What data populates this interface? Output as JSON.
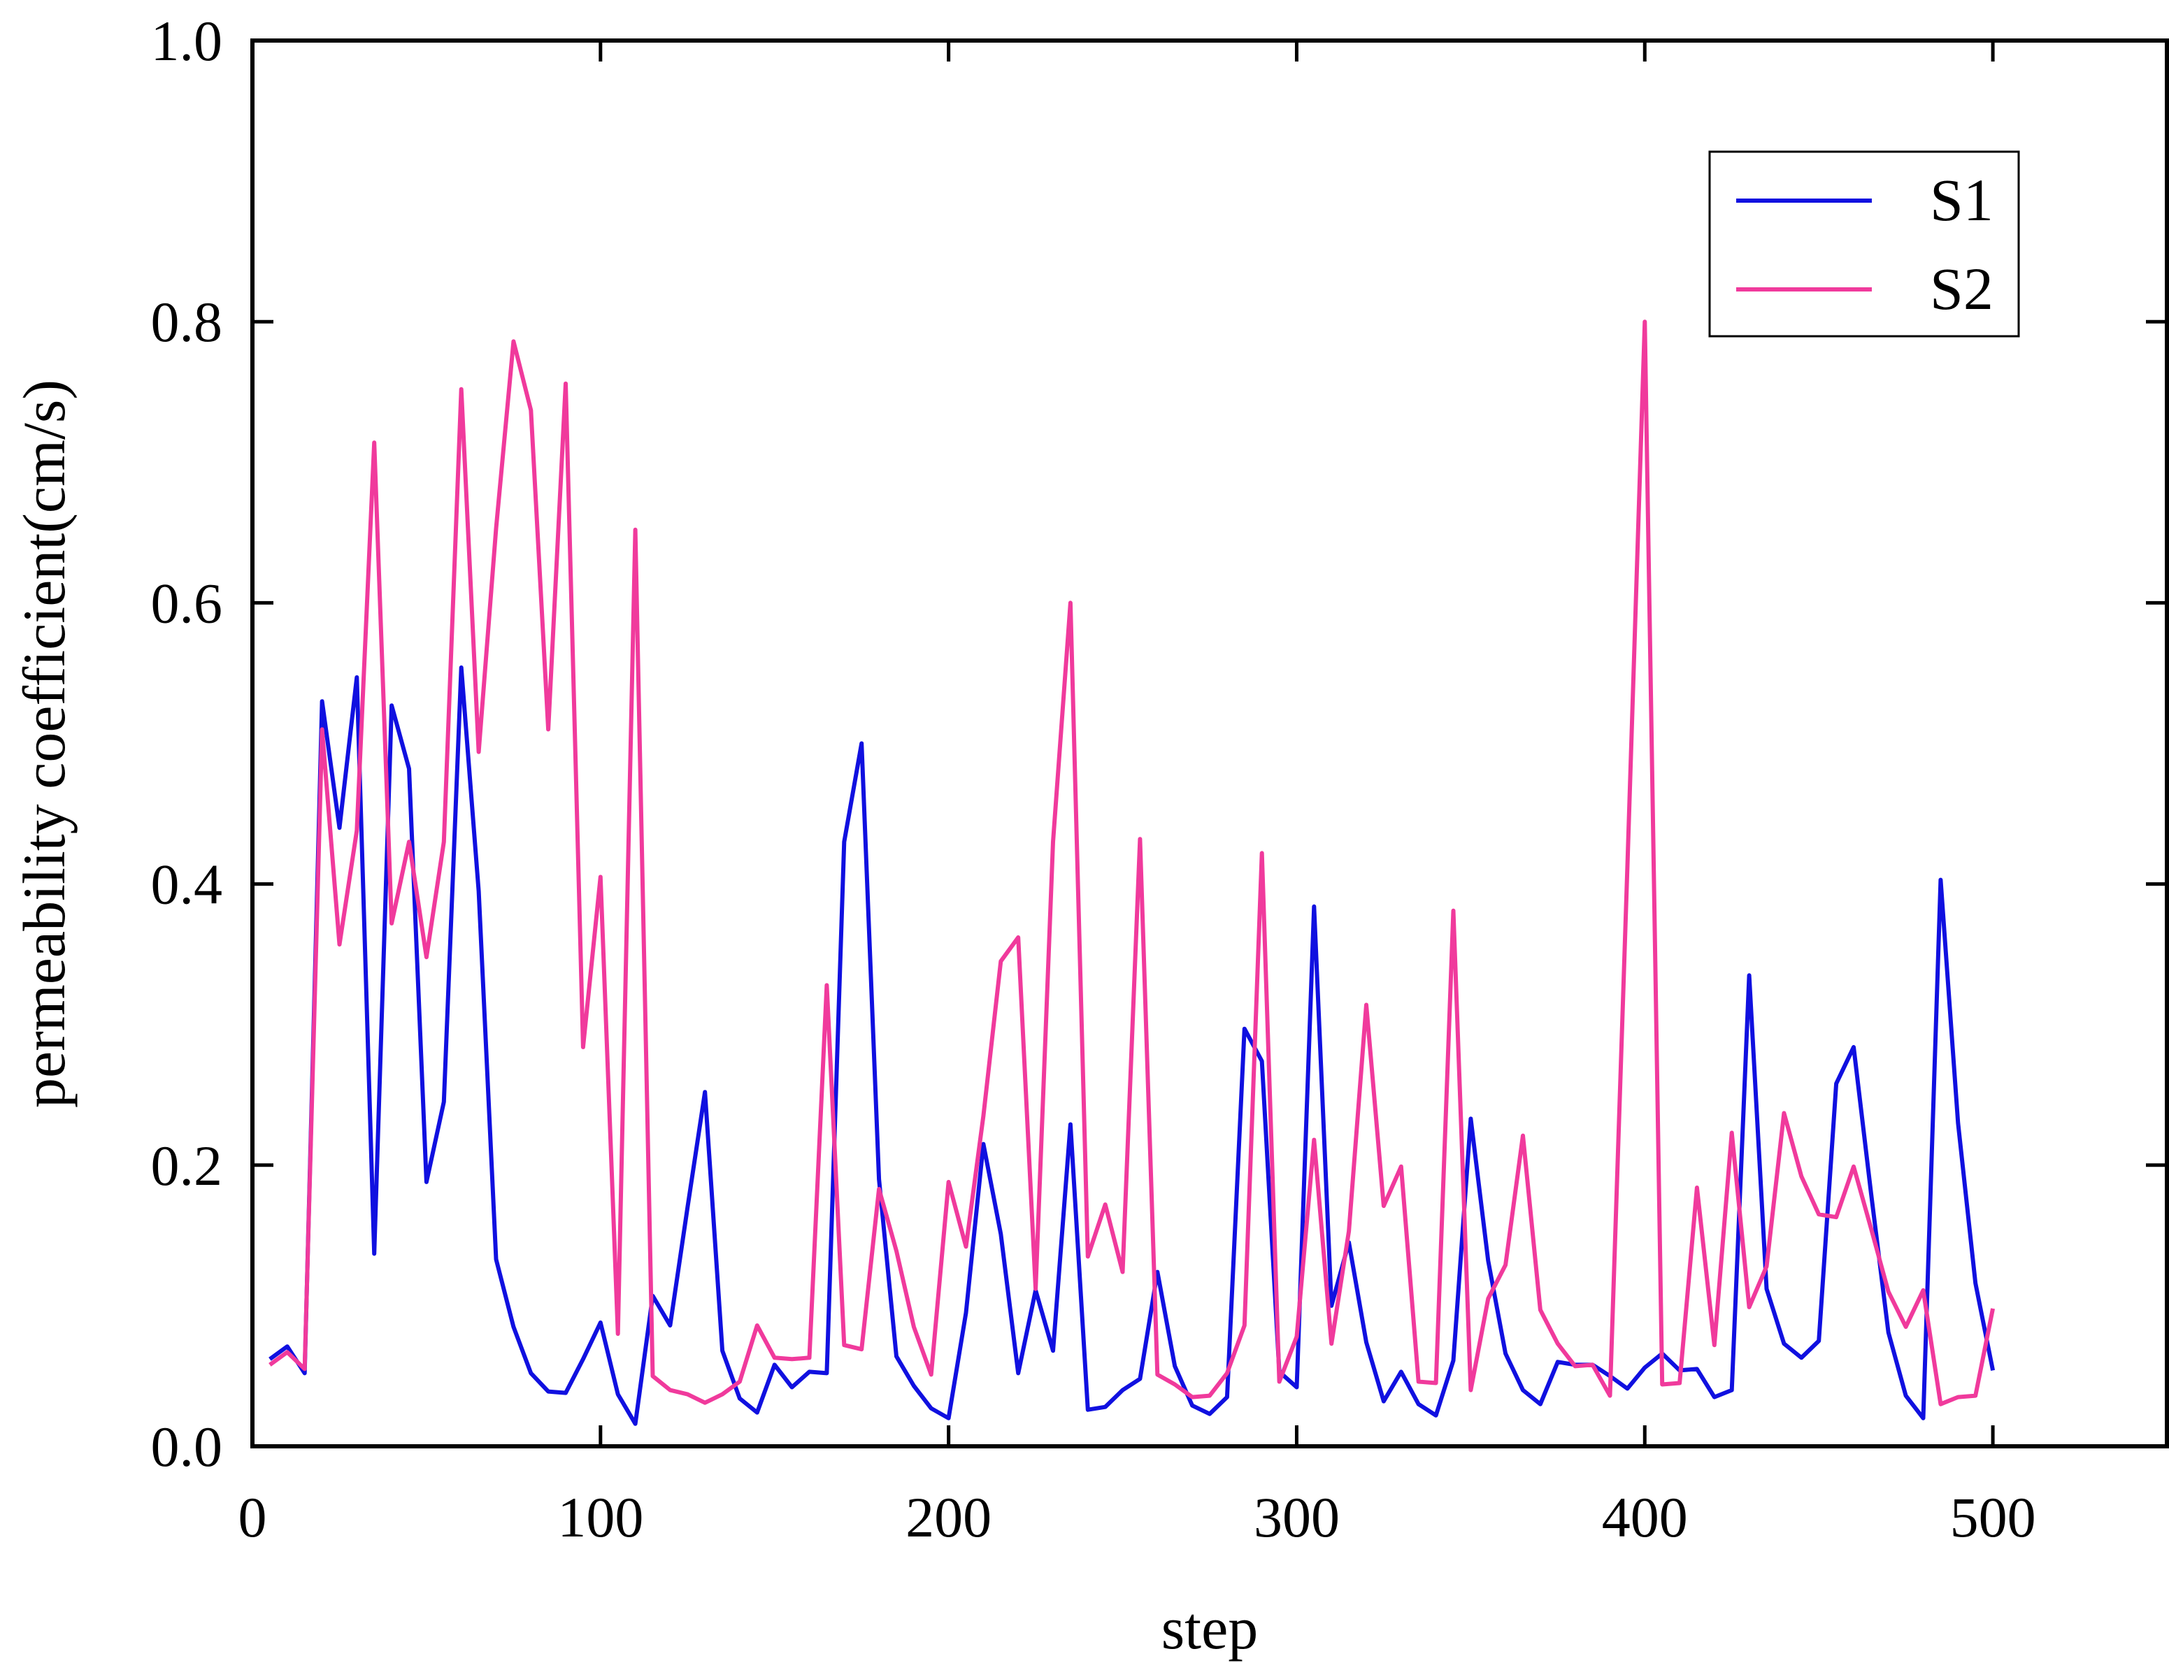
{
  "chart_data": {
    "type": "line",
    "title": "",
    "xlabel": "step",
    "ylabel": "permeability coefficient(cm/s)",
    "xlim": [
      0,
      550
    ],
    "ylim": [
      0.0,
      1.0
    ],
    "x_ticks": [
      0,
      100,
      200,
      300,
      400,
      500
    ],
    "x_tick_labels": [
      "0",
      "100",
      "200",
      "300",
      "400",
      "500"
    ],
    "y_ticks": [
      0.0,
      0.2,
      0.4,
      0.6,
      0.8,
      1.0
    ],
    "y_tick_labels": [
      "0.0",
      "0.2",
      "0.4",
      "0.6",
      "0.8",
      "1.0"
    ],
    "grid": false,
    "legend_position": "top-right",
    "series": [
      {
        "name": "S1",
        "color": "#1010e0",
        "x": [
          5,
          10,
          15,
          20,
          25,
          30,
          35,
          40,
          45,
          50,
          55,
          60,
          65,
          70,
          75,
          80,
          85,
          90,
          95,
          100,
          105,
          110,
          115,
          120,
          125,
          130,
          135,
          140,
          145,
          150,
          155,
          160,
          165,
          170,
          175,
          180,
          185,
          190,
          195,
          200,
          205,
          210,
          215,
          220,
          225,
          230,
          235,
          240,
          245,
          250,
          255,
          260,
          265,
          270,
          275,
          280,
          285,
          290,
          295,
          300,
          305,
          310,
          315,
          320,
          325,
          330,
          335,
          340,
          345,
          350,
          355,
          360,
          365,
          370,
          375,
          380,
          385,
          390,
          395,
          400,
          405,
          410,
          415,
          420,
          425,
          430,
          435,
          440,
          445,
          450,
          455,
          460,
          465,
          470,
          475,
          480,
          485,
          490,
          495,
          500
        ],
        "values": [
          0.062,
          0.071,
          0.052,
          0.53,
          0.44,
          0.547,
          0.137,
          0.527,
          0.482,
          0.188,
          0.245,
          0.554,
          0.395,
          0.133,
          0.085,
          0.052,
          0.039,
          0.038,
          0.062,
          0.088,
          0.037,
          0.016,
          0.107,
          0.086,
          0.17,
          0.252,
          0.068,
          0.034,
          0.024,
          0.058,
          0.042,
          0.053,
          0.052,
          0.43,
          0.5,
          0.19,
          0.064,
          0.043,
          0.027,
          0.02,
          0.095,
          0.215,
          0.151,
          0.052,
          0.111,
          0.068,
          0.229,
          0.026,
          0.028,
          0.04,
          0.048,
          0.124,
          0.057,
          0.029,
          0.023,
          0.035,
          0.297,
          0.274,
          0.053,
          0.042,
          0.384,
          0.1,
          0.145,
          0.074,
          0.032,
          0.053,
          0.03,
          0.022,
          0.061,
          0.233,
          0.132,
          0.066,
          0.04,
          0.03,
          0.06,
          0.058,
          0.058,
          0.05,
          0.041,
          0.056,
          0.066,
          0.054,
          0.055,
          0.035,
          0.04,
          0.335,
          0.112,
          0.073,
          0.063,
          0.075,
          0.258,
          0.284,
          0.18,
          0.081,
          0.036,
          0.02,
          0.403,
          0.23,
          0.116,
          0.054
        ]
      },
      {
        "name": "S2",
        "color": "#f03a9c",
        "x": [
          5,
          10,
          15,
          20,
          25,
          30,
          35,
          40,
          45,
          50,
          55,
          60,
          65,
          70,
          75,
          80,
          85,
          90,
          95,
          100,
          105,
          110,
          115,
          120,
          125,
          130,
          135,
          140,
          145,
          150,
          155,
          160,
          165,
          170,
          175,
          180,
          185,
          190,
          195,
          200,
          205,
          210,
          215,
          220,
          225,
          230,
          235,
          240,
          245,
          250,
          255,
          260,
          265,
          270,
          275,
          280,
          285,
          290,
          295,
          300,
          305,
          310,
          315,
          320,
          325,
          330,
          335,
          340,
          345,
          350,
          355,
          360,
          365,
          370,
          375,
          380,
          385,
          390,
          395,
          400,
          405,
          410,
          415,
          420,
          425,
          430,
          435,
          440,
          445,
          450,
          455,
          460,
          465,
          470,
          475,
          480,
          485,
          490,
          495,
          500
        ],
        "values": [
          0.058,
          0.067,
          0.055,
          0.51,
          0.357,
          0.438,
          0.714,
          0.372,
          0.43,
          0.348,
          0.43,
          0.752,
          0.494,
          0.653,
          0.786,
          0.737,
          0.51,
          0.756,
          0.284,
          0.405,
          0.08,
          0.652,
          0.05,
          0.04,
          0.037,
          0.031,
          0.037,
          0.046,
          0.086,
          0.063,
          0.062,
          0.063,
          0.328,
          0.072,
          0.069,
          0.183,
          0.139,
          0.085,
          0.051,
          0.188,
          0.142,
          0.235,
          0.345,
          0.362,
          0.112,
          0.43,
          0.6,
          0.135,
          0.172,
          0.124,
          0.432,
          0.051,
          0.044,
          0.035,
          0.036,
          0.052,
          0.086,
          0.422,
          0.046,
          0.078,
          0.218,
          0.073,
          0.153,
          0.314,
          0.171,
          0.199,
          0.046,
          0.045,
          0.381,
          0.04,
          0.105,
          0.129,
          0.221,
          0.097,
          0.073,
          0.057,
          0.058,
          0.036,
          0.412,
          0.8,
          0.044,
          0.045,
          0.184,
          0.072,
          0.223,
          0.099,
          0.128,
          0.237,
          0.192,
          0.165,
          0.163,
          0.199,
          0.155,
          0.11,
          0.085,
          0.111,
          0.03,
          0.035,
          0.036,
          0.098
        ]
      }
    ]
  }
}
